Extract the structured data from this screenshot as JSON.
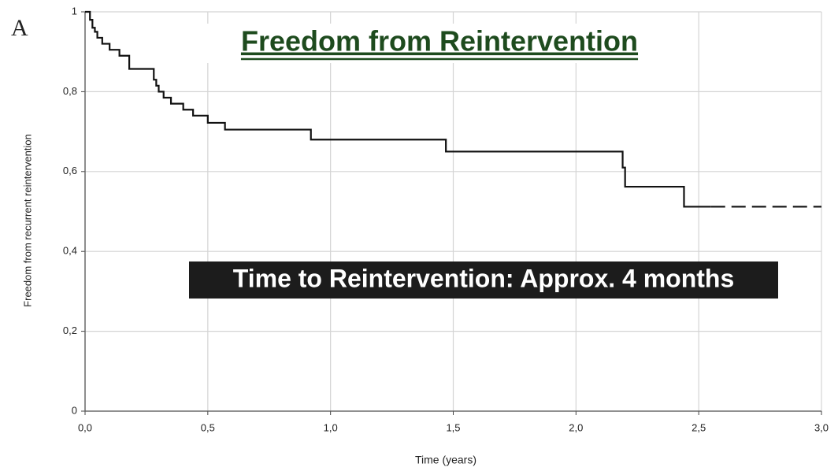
{
  "chart_data": {
    "type": "step",
    "panel_label": "A",
    "title": "Freedom from Reintervention",
    "annotation": "Time to Reintervention: Approx. 4 months",
    "x_label": "Time (years)",
    "y_label": "Freedom from recurrent reintervention",
    "series": [
      {
        "style": "solid",
        "color": "#111111",
        "x": [
          0,
          0.02,
          0.03,
          0.04,
          0.05,
          0.07,
          0.1,
          0.14,
          0.18,
          0.28,
          0.29,
          0.3,
          0.32,
          0.35,
          0.4,
          0.44,
          0.5,
          0.57,
          0.92,
          1.47,
          2.19,
          2.2,
          2.44,
          2.55
        ],
        "values": [
          1,
          0.98,
          0.96,
          0.95,
          0.935,
          0.92,
          0.905,
          0.89,
          0.857,
          0.83,
          0.815,
          0.8,
          0.785,
          0.77,
          0.755,
          0.74,
          0.722,
          0.705,
          0.68,
          0.65,
          0.61,
          0.562,
          0.512,
          0.512
        ]
      },
      {
        "style": "dashed",
        "color": "#111111",
        "x": [
          2.55,
          3.0
        ],
        "values": [
          0.512,
          0.512
        ]
      }
    ],
    "xlim": [
      0,
      3.0
    ],
    "xticks": [
      {
        "value": 0,
        "label": "0,0"
      },
      {
        "value": 0.5,
        "label": "0,5"
      },
      {
        "value": 1.0,
        "label": "1,0"
      },
      {
        "value": 1.5,
        "label": "1,5"
      },
      {
        "value": 2.0,
        "label": "2,0"
      },
      {
        "value": 2.5,
        "label": "2,5"
      },
      {
        "value": 3.0,
        "label": "3,0"
      }
    ],
    "ylim": [
      0,
      1
    ],
    "yticks": [
      0,
      {
        "value": 0.2,
        "label": "0,2"
      },
      {
        "value": 0.4,
        "label": "0,4"
      },
      {
        "value": 0.6,
        "label": "0,6"
      },
      {
        "value": 0.8,
        "label": "0,8"
      },
      1
    ],
    "grid": true
  }
}
